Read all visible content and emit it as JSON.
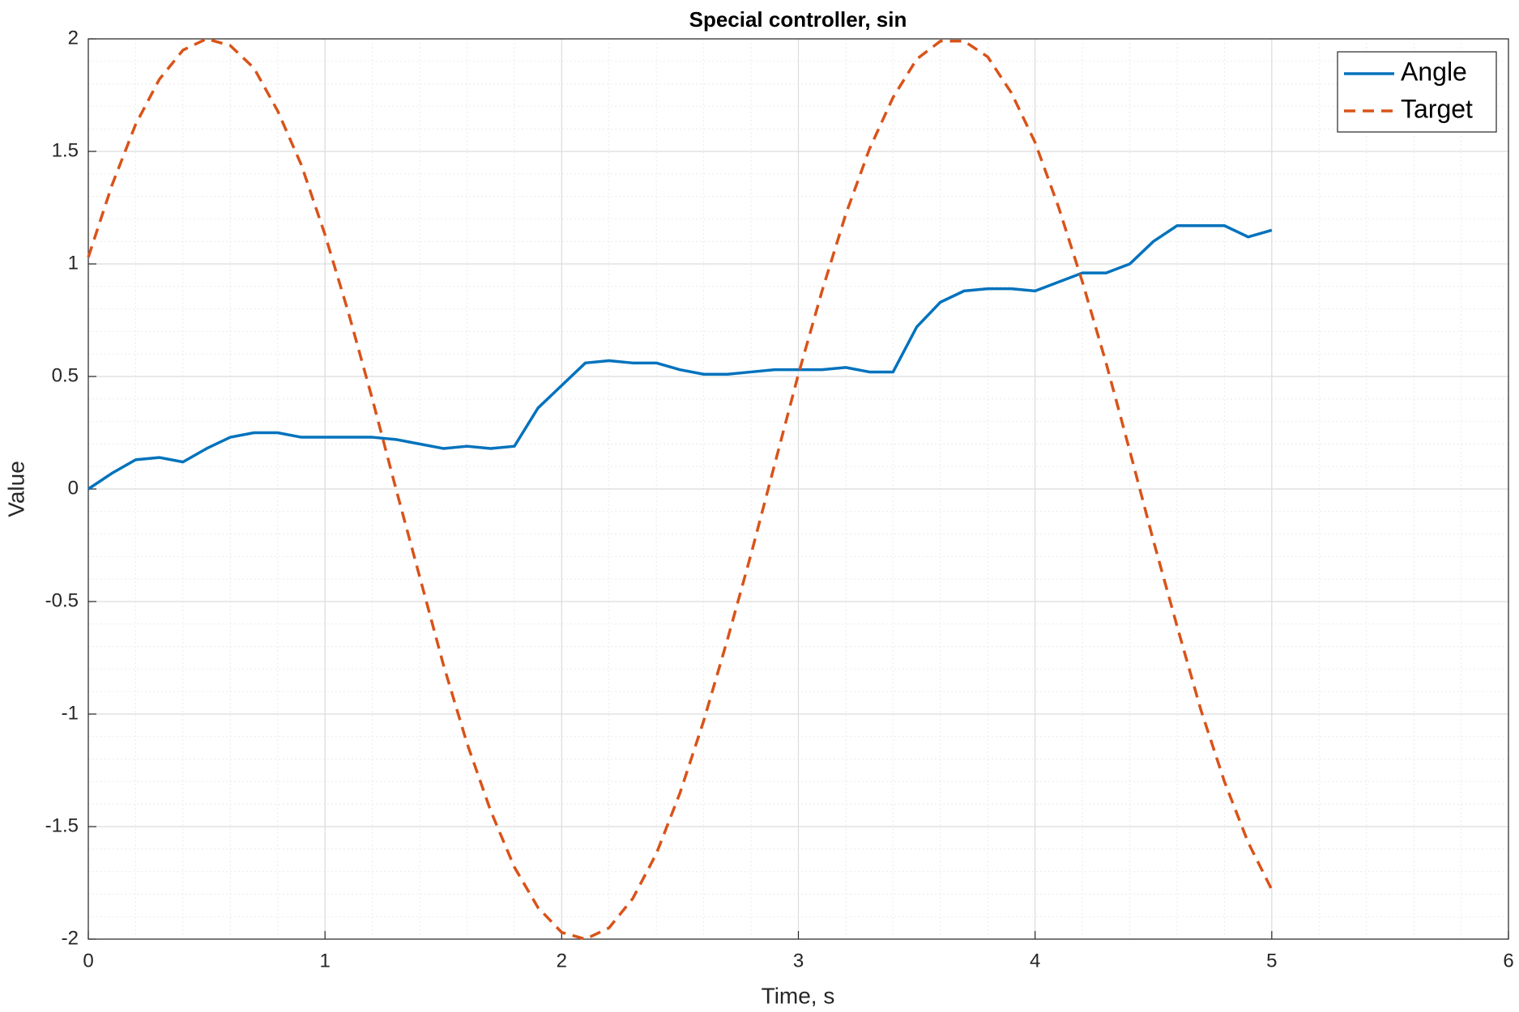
{
  "chart_data": {
    "type": "line",
    "title": "Special controller, sin",
    "xlabel": "Time, s",
    "ylabel": "Value",
    "x": [
      0,
      0.1,
      0.2,
      0.3,
      0.4,
      0.5,
      0.6,
      0.7,
      0.8,
      0.9,
      1.0,
      1.1,
      1.2,
      1.3,
      1.4,
      1.5,
      1.6,
      1.7,
      1.8,
      1.9,
      2.0,
      2.1,
      2.2,
      2.3,
      2.4,
      2.5,
      2.6,
      2.7,
      2.8,
      2.9,
      3.0,
      3.1,
      3.2,
      3.3,
      3.4,
      3.5,
      3.6,
      3.7,
      3.8,
      3.9,
      4.0,
      4.1,
      4.2,
      4.3,
      4.4,
      4.5,
      4.6,
      4.7,
      4.8,
      4.9,
      5.0
    ],
    "series": [
      {
        "name": "Angle",
        "color": "#0072bd",
        "dash": false,
        "values": [
          0,
          0.07,
          0.13,
          0.14,
          0.12,
          0.18,
          0.23,
          0.25,
          0.25,
          0.23,
          0.23,
          0.23,
          0.23,
          0.22,
          0.2,
          0.18,
          0.19,
          0.18,
          0.19,
          0.36,
          0.46,
          0.56,
          0.57,
          0.56,
          0.56,
          0.53,
          0.51,
          0.51,
          0.52,
          0.53,
          0.53,
          0.53,
          0.54,
          0.52,
          0.52,
          0.72,
          0.83,
          0.88,
          0.89,
          0.89,
          0.88,
          0.92,
          0.96,
          0.96,
          1.0,
          1.1,
          1.17,
          1.17,
          1.17,
          1.12,
          1.15
        ]
      },
      {
        "name": "Target",
        "color": "#d95319",
        "dash": true,
        "values": [
          1.03,
          1.35,
          1.62,
          1.82,
          1.95,
          2.0,
          1.97,
          1.87,
          1.68,
          1.44,
          1.13,
          0.78,
          0.4,
          0.0,
          -0.39,
          -0.78,
          -1.13,
          -1.43,
          -1.68,
          -1.86,
          -1.97,
          -2.0,
          -1.95,
          -1.82,
          -1.62,
          -1.35,
          -1.03,
          -0.67,
          -0.29,
          0.11,
          0.51,
          0.88,
          1.22,
          1.51,
          1.74,
          1.91,
          1.99,
          1.99,
          1.92,
          1.76,
          1.54,
          1.25,
          0.92,
          0.56,
          0.17,
          -0.23,
          -0.61,
          -0.98,
          -1.3,
          -1.57,
          -1.78
        ]
      }
    ],
    "xlim": [
      0,
      6
    ],
    "xticks": [
      0,
      1,
      2,
      3,
      4,
      5,
      6
    ],
    "ylim": [
      -2,
      2
    ],
    "yticks": [
      -2,
      -1.5,
      -1,
      -0.5,
      0,
      0.5,
      1,
      1.5,
      2
    ],
    "grid": true,
    "minor_grid": true,
    "xminor": 0.2,
    "yminor": 0.1,
    "legend": "upper-right"
  }
}
